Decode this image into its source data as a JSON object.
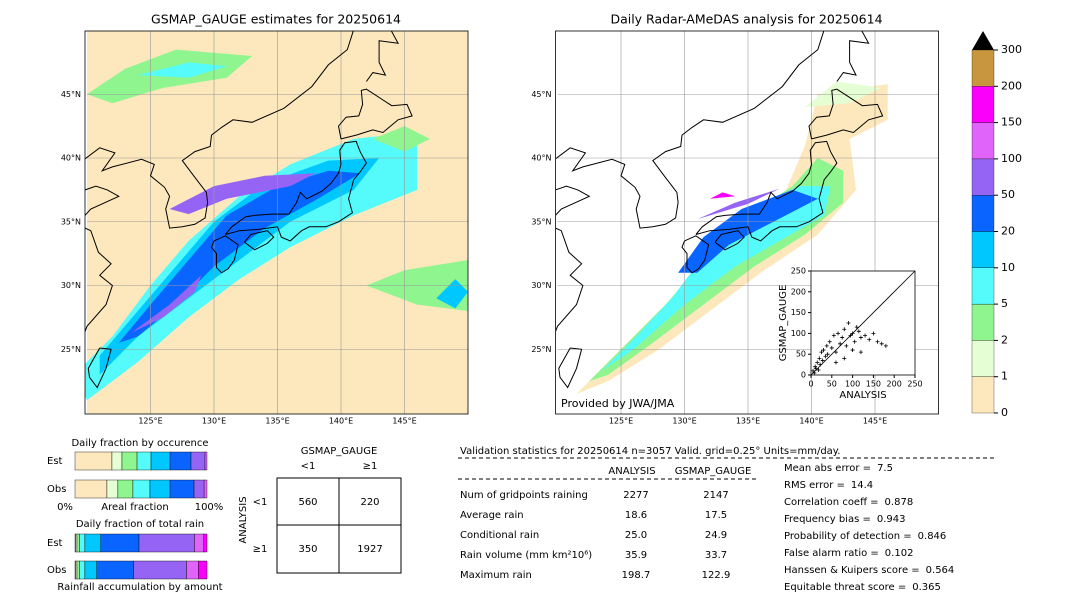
{
  "left_map": {
    "title": "GSMAP_GAUGE estimates for 20250614",
    "lat_labels": [
      "45°N",
      "40°N",
      "35°N",
      "30°N",
      "25°N"
    ],
    "lon_labels": [
      "125°E",
      "130°E",
      "135°E",
      "140°E",
      "145°E"
    ]
  },
  "right_map": {
    "title": "Daily Radar-AMeDAS analysis for 20250614",
    "lat_labels": [
      "45°N",
      "40°N",
      "35°N",
      "30°N",
      "25°N"
    ],
    "lon_labels": [
      "125°E",
      "130°E",
      "135°E",
      "140°E",
      "145°E"
    ],
    "credit": "Provided by JWA/JMA"
  },
  "colorbar": {
    "ticks": [
      0,
      1,
      2,
      5,
      10,
      20,
      50,
      100,
      150,
      200,
      300
    ],
    "colors": [
      "#fde8bd",
      "#e6fed3",
      "#8ff58f",
      "#55fbfb",
      "#00c8ff",
      "#0a64ff",
      "#9664f5",
      "#e164fa",
      "#fa00fa",
      "#c8963c"
    ],
    "extend_color": "#000000"
  },
  "scatter": {
    "type": "scatter",
    "xlabel": "ANALYSIS",
    "ylabel": "GSMAP_GAUGE",
    "xlim": [
      0,
      250
    ],
    "ylim": [
      0,
      250
    ],
    "xticks": [
      0,
      50,
      100,
      150,
      200,
      250
    ],
    "yticks": [
      0,
      50,
      100,
      150,
      200,
      250
    ],
    "color": "#000000",
    "x": [
      5,
      8,
      10,
      12,
      15,
      18,
      20,
      22,
      25,
      28,
      30,
      35,
      38,
      40,
      45,
      50,
      55,
      60,
      65,
      70,
      75,
      80,
      85,
      90,
      95,
      100,
      105,
      110,
      115,
      120,
      130,
      140,
      150,
      160,
      170,
      180,
      60,
      80,
      100,
      120
    ],
    "y": [
      10,
      5,
      20,
      15,
      30,
      12,
      40,
      25,
      55,
      35,
      60,
      45,
      70,
      50,
      80,
      65,
      95,
      55,
      100,
      75,
      90,
      110,
      70,
      125,
      95,
      100,
      80,
      115,
      105,
      90,
      95,
      85,
      100,
      80,
      75,
      70,
      30,
      40,
      60,
      55
    ]
  },
  "occurrence": {
    "title": "Daily fraction by occurence",
    "rows": [
      "Est",
      "Obs"
    ],
    "x_start": "0%",
    "xlabel": "Areal fraction",
    "x_end": "100%",
    "est": [
      28,
      7.6,
      11.4,
      10.6,
      14.4,
      15.9,
      10.6,
      1.5
    ],
    "obs": [
      24.2,
      8.3,
      11.4,
      12.9,
      15.2,
      18.2,
      7.6,
      2.2
    ]
  },
  "total_rain": {
    "title": "Daily fraction of total rain",
    "rows": [
      "Est",
      "Obs"
    ],
    "xlabel": "Rainfall accumulation by amount",
    "est": [
      0.5,
      1,
      2,
      4,
      12,
      29,
      42,
      7,
      2.5
    ],
    "obs": [
      0.5,
      1,
      2,
      4,
      9,
      28,
      40,
      9,
      6.5
    ]
  },
  "contingency": {
    "title": "GSMAP_GAUGE",
    "col_labels": [
      "<1",
      "≥1"
    ],
    "row_title": "ANALYSIS",
    "row_labels": [
      "<1",
      "≥1"
    ],
    "cells": [
      [
        560,
        220
      ],
      [
        350,
        1927
      ]
    ]
  },
  "stats": {
    "header": "Validation statistics for 20250614  n=3057 Valid. grid=0.25° Units=mm/day.",
    "columns": [
      "ANALYSIS",
      "GSMAP_GAUGE"
    ],
    "rows": [
      {
        "label": "Num of gridpoints raining",
        "values": [
          "2277",
          "2147"
        ]
      },
      {
        "label": "Average rain",
        "values": [
          "18.6",
          "17.5"
        ]
      },
      {
        "label": "Conditional rain",
        "values": [
          "25.0",
          "24.9"
        ]
      },
      {
        "label": "Rain volume (mm km²10⁶)",
        "values": [
          "35.9",
          "33.7"
        ]
      },
      {
        "label": "Maximum rain",
        "values": [
          "198.7",
          "122.9"
        ]
      }
    ],
    "scores": [
      {
        "label": "Mean abs error =",
        "value": "7.5"
      },
      {
        "label": "RMS error =",
        "value": "14.4"
      },
      {
        "label": "Correlation coeff =",
        "value": "0.878"
      },
      {
        "label": "Frequency bias =",
        "value": "0.943"
      },
      {
        "label": "Probability of detection =",
        "value": "0.846"
      },
      {
        "label": "False alarm ratio =",
        "value": "0.102"
      },
      {
        "label": "Hanssen & Kuipers score =",
        "value": "0.564"
      },
      {
        "label": "Equitable threat score =",
        "value": "0.365"
      }
    ]
  }
}
